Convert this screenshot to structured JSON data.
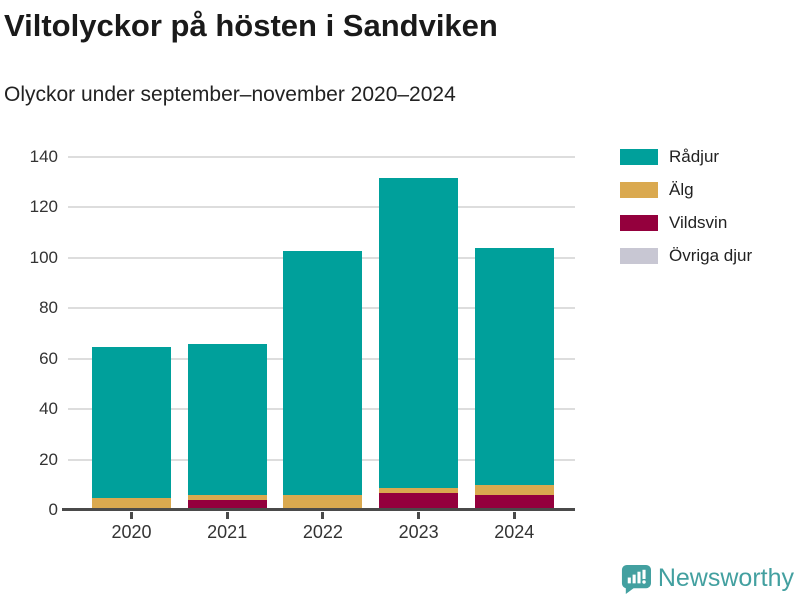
{
  "header": {
    "title": "Viltolyckor på hösten i Sandviken",
    "subtitle": "Olyckor under september–november 2020–2024"
  },
  "chart_data": {
    "type": "bar",
    "stacked": true,
    "title": "Viltolyckor på hösten i Sandviken",
    "subtitle": "Olyckor under september–november 2020–2024",
    "categories": [
      "2020",
      "2021",
      "2022",
      "2023",
      "2024"
    ],
    "series": [
      {
        "name": "Rådjur",
        "color": "#00A09B",
        "values": [
          60,
          60,
          97,
          123,
          94
        ]
      },
      {
        "name": "Älg",
        "color": "#DAA94F",
        "values": [
          4,
          2,
          5,
          2,
          4
        ]
      },
      {
        "name": "Vildsvin",
        "color": "#94003D",
        "values": [
          0,
          3,
          0,
          6,
          5
        ]
      },
      {
        "name": "Övriga djur",
        "color": "#C8C7D3",
        "values": [
          0,
          0,
          0,
          0,
          0
        ]
      }
    ],
    "stack_order_bottom_to_top": [
      "Övriga djur",
      "Vildsvin",
      "Älg",
      "Rådjur"
    ],
    "totals": [
      64,
      65,
      102,
      131,
      103
    ],
    "xlabel": "",
    "ylabel": "",
    "ylim": [
      0,
      140
    ],
    "yticks": [
      0,
      20,
      40,
      60,
      80,
      100,
      120,
      140
    ],
    "grid": true,
    "legend_position": "top-right"
  },
  "footer": {
    "brand": "Newsworthy"
  },
  "colors": {
    "bar_teal": "#00A09B",
    "bar_gold": "#DAA94F",
    "bar_maroon": "#94003D",
    "bar_gray": "#C8C7D3",
    "axis": "#4A4A4A",
    "gridline": "#DDDDDD",
    "tick_label": "#333333",
    "title_text": "#1A1A1A",
    "brand_teal": "#43A0A0"
  }
}
